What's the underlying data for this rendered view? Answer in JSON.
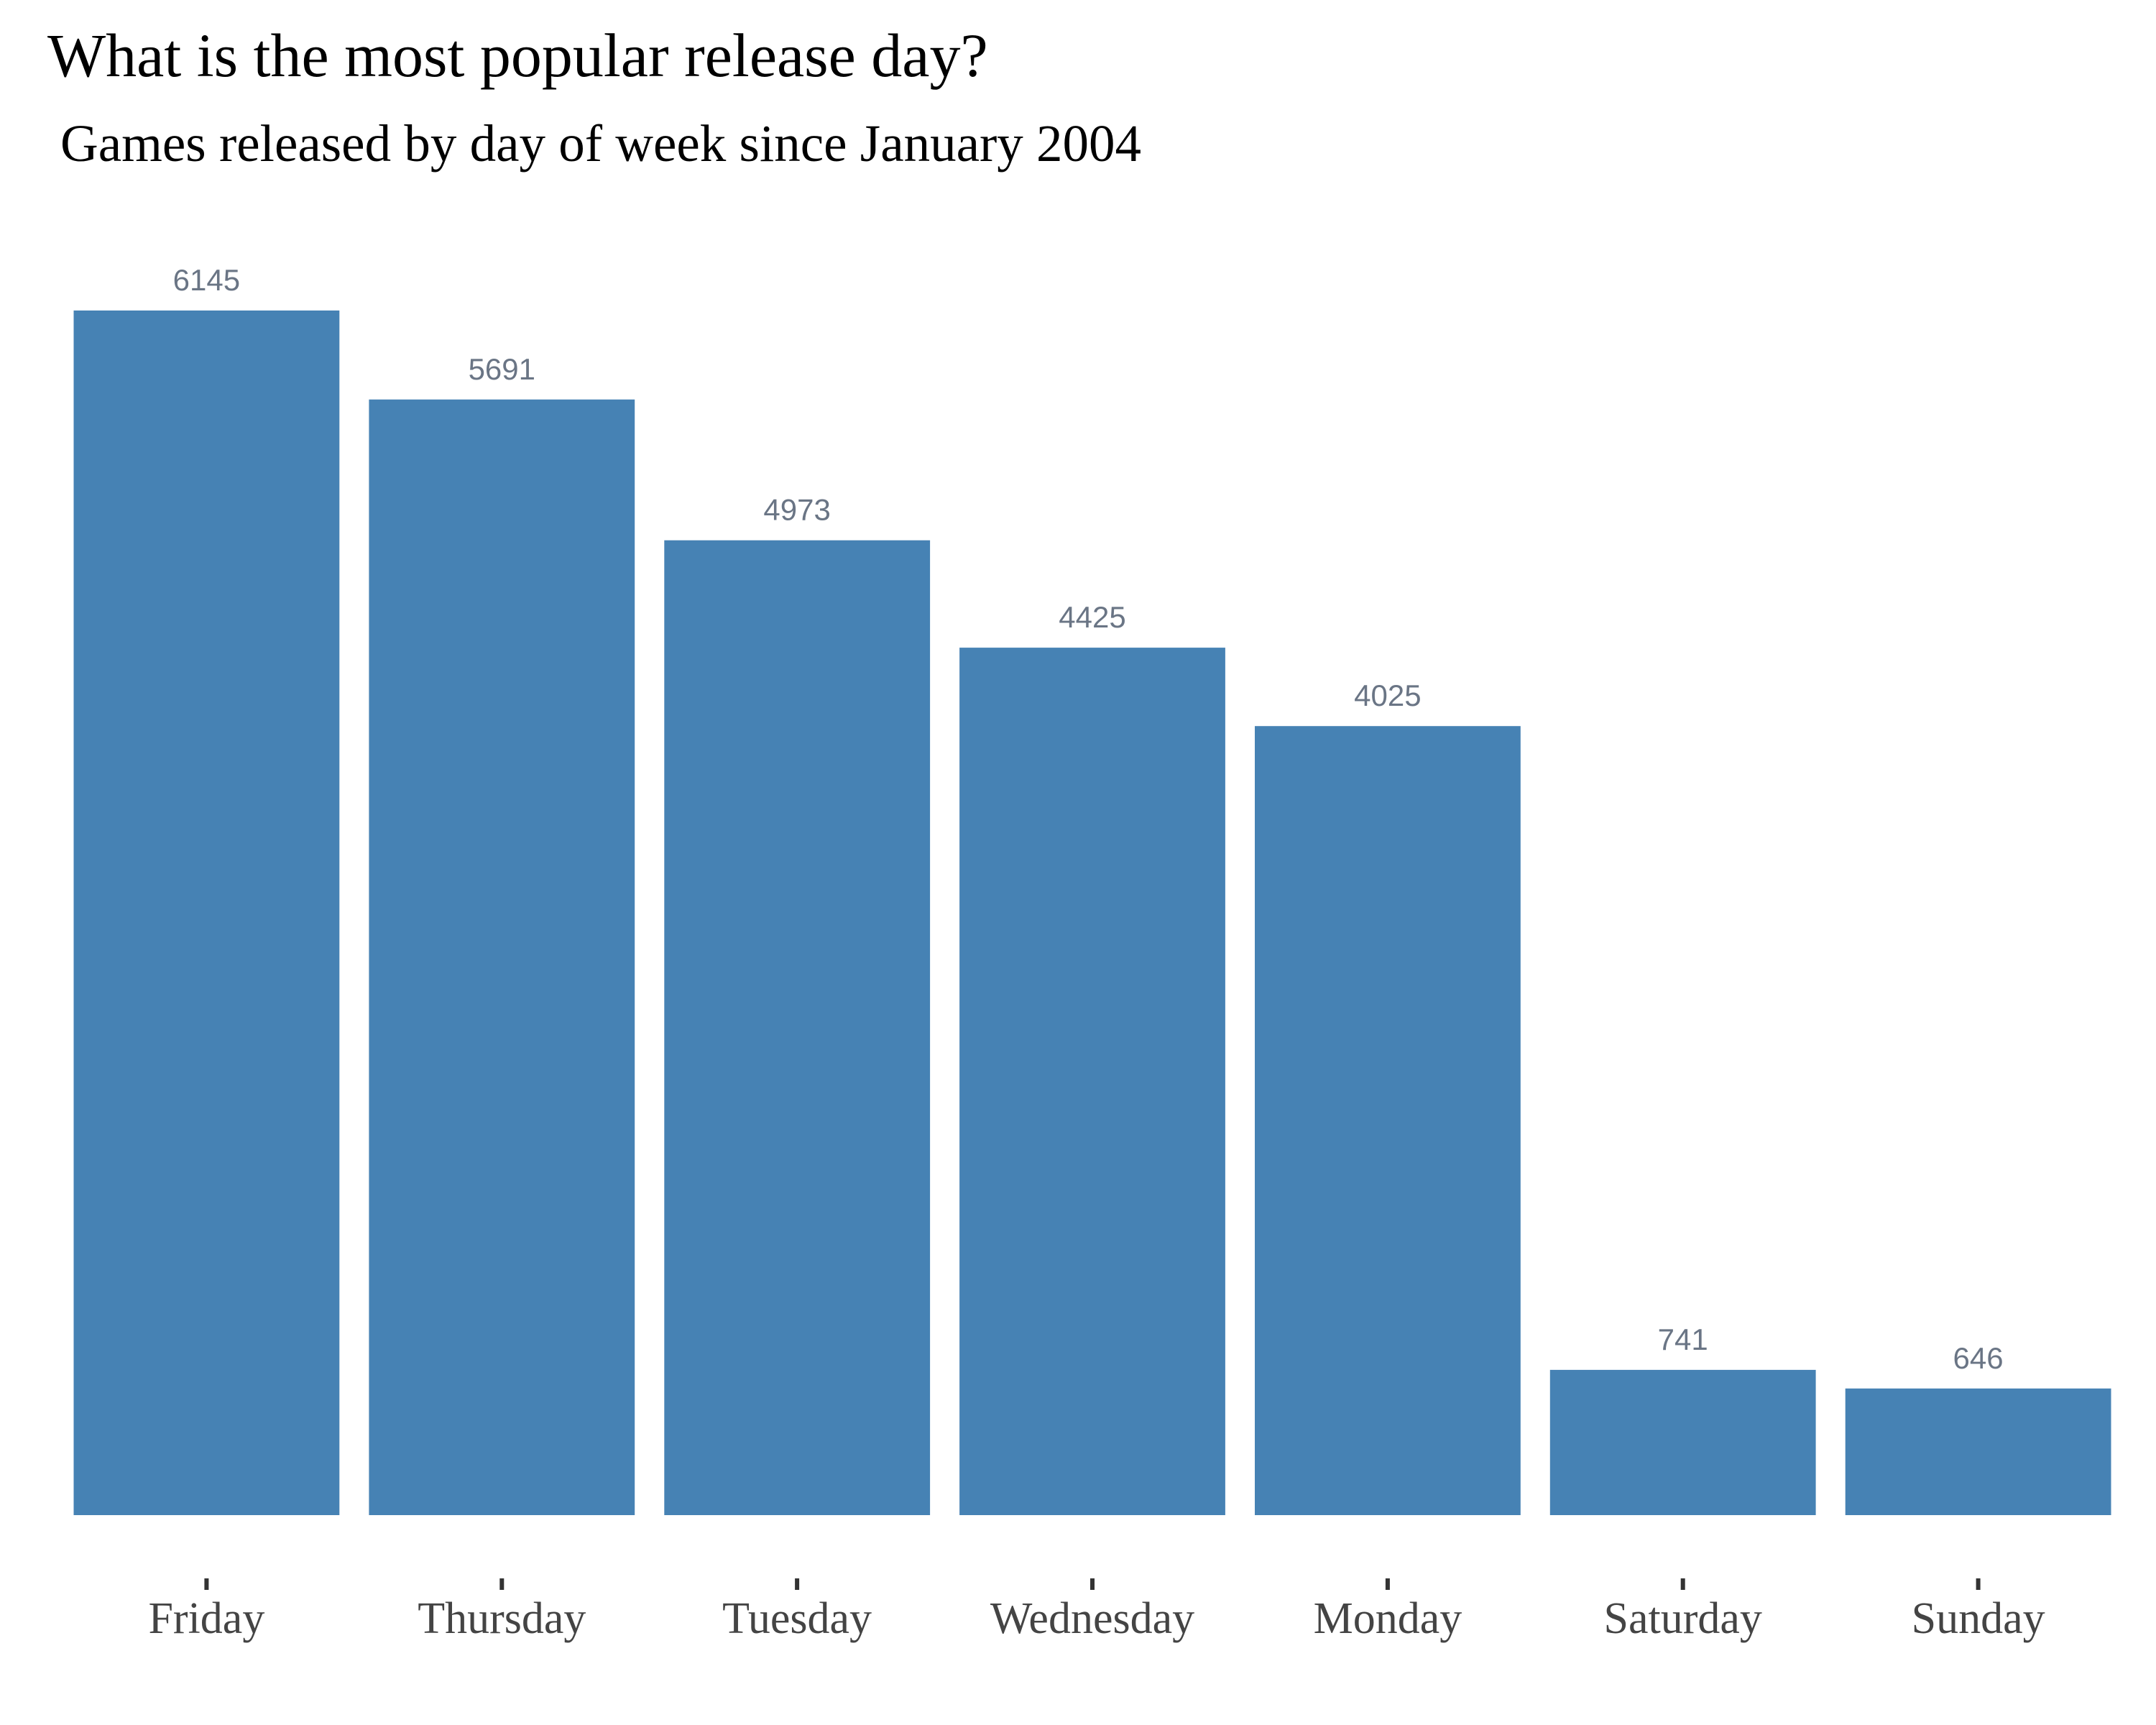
{
  "colors": {
    "bar": "#4682b4",
    "value_label": "#6a7585",
    "tick_label": "#444444",
    "tick_mark": "#333333",
    "background": "#ffffff"
  },
  "chart_data": {
    "type": "bar",
    "title": "What is the most popular release day?",
    "subtitle": "Games released by day of week since January 2004",
    "xlabel": "",
    "ylabel": "",
    "categories": [
      "Friday",
      "Thursday",
      "Tuesday",
      "Wednesday",
      "Monday",
      "Saturday",
      "Sunday"
    ],
    "values": [
      6145,
      5691,
      4973,
      4425,
      4025,
      741,
      646
    ],
    "data_labels": [
      "6145",
      "5691",
      "4973",
      "4425",
      "4025",
      "741",
      "646"
    ],
    "ylim": [
      0,
      6145
    ],
    "y_axis_visible": false,
    "grid": false,
    "legend": "none"
  }
}
